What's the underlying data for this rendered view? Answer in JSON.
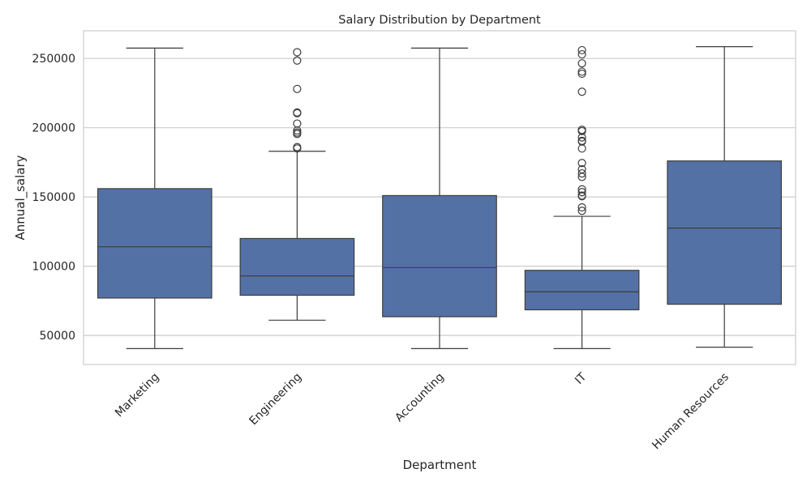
{
  "chart_data": {
    "type": "box",
    "title": "Salary Distribution by Department",
    "xlabel": "Department",
    "ylabel": "Annual_salary",
    "ylim": [
      29000,
      270000
    ],
    "yticks": [
      50000,
      100000,
      150000,
      200000,
      250000
    ],
    "ytick_labels": [
      "50000",
      "100000",
      "150000",
      "200000",
      "250000"
    ],
    "grid": true,
    "box_color": "#5471a6",
    "line_color": "#3d3d3d",
    "categories": [
      "Marketing",
      "Engineering",
      "Accounting",
      "IT",
      "Human Resources"
    ],
    "boxes": [
      {
        "category": "Marketing",
        "whisker_low": 40500,
        "q1": 77000,
        "median": 114000,
        "q3": 156000,
        "whisker_high": 257500,
        "outliers": []
      },
      {
        "category": "Engineering",
        "whisker_low": 61000,
        "q1": 79000,
        "median": 93000,
        "q3": 120000,
        "whisker_high": 183000,
        "outliers": [
          254500,
          248500,
          228000,
          211000,
          210500,
          203000,
          198000,
          196500,
          195500,
          186000,
          185000
        ]
      },
      {
        "category": "Accounting",
        "whisker_low": 40500,
        "q1": 63500,
        "median": 99000,
        "q3": 151000,
        "whisker_high": 257500,
        "outliers": []
      },
      {
        "category": "IT",
        "whisker_low": 40500,
        "q1": 68500,
        "median": 81500,
        "q3": 97000,
        "whisker_high": 136000,
        "outliers": [
          256000,
          253000,
          246500,
          240500,
          239000,
          226000,
          198500,
          197500,
          193000,
          190500,
          190000,
          185000,
          174500,
          170000,
          167000,
          164500,
          155500,
          153500,
          151000,
          150500,
          142500,
          140000
        ]
      },
      {
        "category": "Human Resources",
        "whisker_low": 41500,
        "q1": 72500,
        "median": 127500,
        "q3": 176000,
        "whisker_high": 258500,
        "outliers": []
      }
    ]
  }
}
